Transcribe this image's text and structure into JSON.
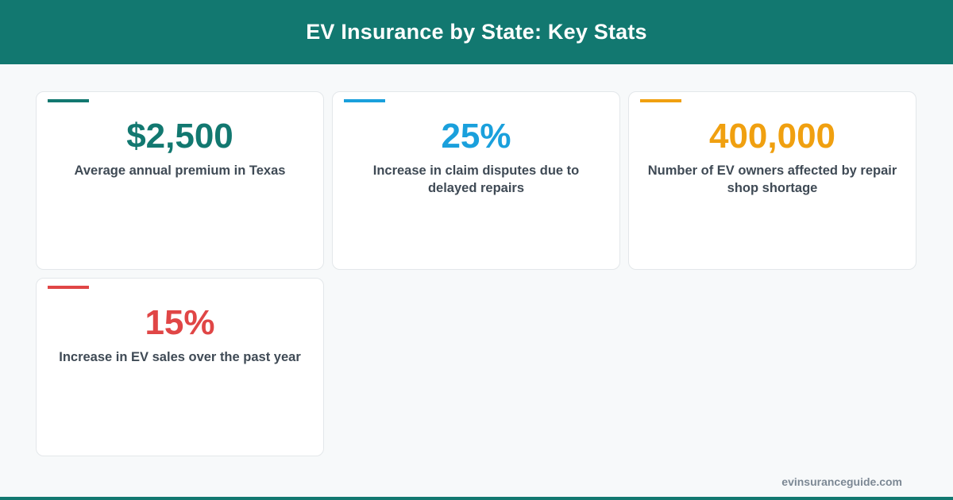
{
  "header": {
    "title": "EV Insurance by State: Key Stats"
  },
  "colors": {
    "brand": "#127870",
    "teal": "#127870",
    "blue": "#1aa0dc",
    "amber": "#f0a010",
    "red": "#e04646"
  },
  "stats": [
    {
      "value": "$2,500",
      "label": "Average annual premium in Texas",
      "color": "#127870"
    },
    {
      "value": "25%",
      "label": "Increase in claim disputes due to delayed repairs",
      "color": "#1aa0dc"
    },
    {
      "value": "400,000",
      "label": "Number of EV owners affected by repair shop shortage",
      "color": "#f0a010"
    },
    {
      "value": "15%",
      "label": "Increase in EV sales over the past year",
      "color": "#e04646"
    }
  ],
  "footer": {
    "url": "evinsuranceguide.com"
  }
}
